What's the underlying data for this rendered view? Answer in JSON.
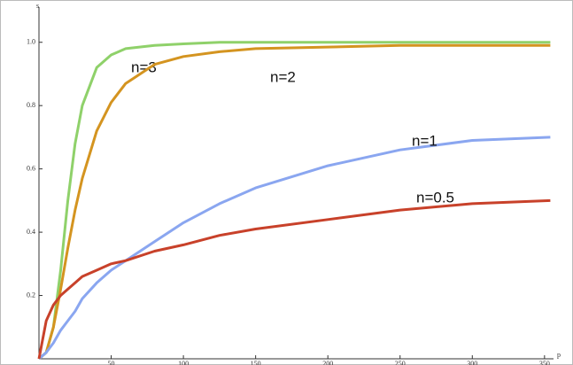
{
  "chart_data": {
    "type": "line",
    "x_label": "p",
    "y_label": "s",
    "x": [
      0,
      5,
      10,
      15,
      20,
      25,
      30,
      40,
      50,
      60,
      80,
      100,
      125,
      150,
      200,
      250,
      300,
      354
    ],
    "series": [
      {
        "name": "n=3",
        "color": "#8fd16a",
        "values": [
          0,
          0.02,
          0.1,
          0.28,
          0.5,
          0.68,
          0.8,
          0.92,
          0.96,
          0.98,
          0.99,
          0.995,
          1,
          1,
          1,
          1,
          1,
          1
        ]
      },
      {
        "name": "n=2",
        "color": "#d49420",
        "values": [
          0,
          0.02,
          0.1,
          0.22,
          0.35,
          0.47,
          0.57,
          0.72,
          0.81,
          0.87,
          0.93,
          0.955,
          0.97,
          0.98,
          0.985,
          0.99,
          0.99,
          0.99
        ]
      },
      {
        "name": "n=1",
        "color": "#8aa6f0",
        "values": [
          0,
          0.02,
          0.05,
          0.09,
          0.12,
          0.15,
          0.19,
          0.24,
          0.28,
          0.31,
          0.37,
          0.43,
          0.49,
          0.54,
          0.61,
          0.66,
          0.69,
          0.7
        ]
      },
      {
        "name": "n=0.5",
        "color": "#c8412a",
        "values": [
          0,
          0.12,
          0.17,
          0.2,
          0.22,
          0.24,
          0.26,
          0.28,
          0.3,
          0.31,
          0.34,
          0.36,
          0.39,
          0.41,
          0.44,
          0.47,
          0.49,
          0.5
        ]
      }
    ],
    "xlim": [
      0,
      355
    ],
    "ylim": [
      0,
      1.1
    ],
    "xticks": [
      50,
      100,
      150,
      200,
      250,
      300,
      350
    ],
    "yticks": [
      0.2,
      0.4,
      0.6,
      0.8,
      {
        "value": 1,
        "label": "1.0"
      }
    ],
    "grid": false
  }
}
